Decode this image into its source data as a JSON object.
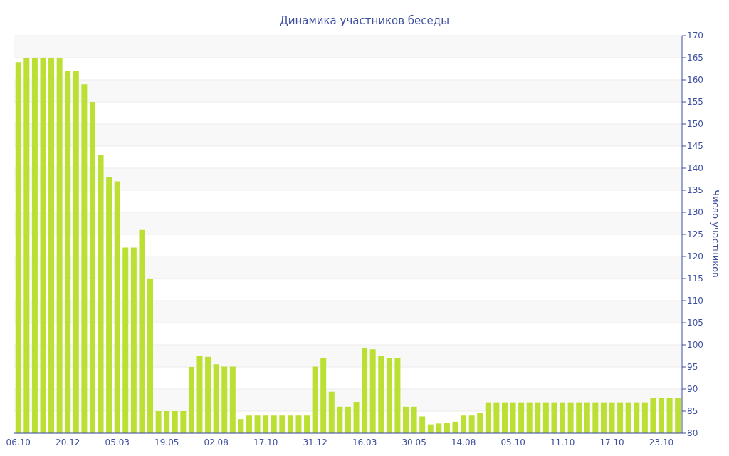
{
  "chart_data": {
    "type": "bar",
    "title": "Динамика участников беседы",
    "ylabel": "Число участников",
    "categories": [
      "06.10",
      null,
      null,
      null,
      null,
      null,
      "20.12",
      null,
      null,
      null,
      null,
      null,
      "05.03",
      null,
      null,
      null,
      null,
      null,
      "19.05",
      null,
      null,
      null,
      null,
      null,
      "02.08",
      null,
      null,
      null,
      null,
      null,
      "17.10",
      null,
      null,
      null,
      null,
      null,
      "31.12",
      null,
      null,
      null,
      null,
      null,
      "16.03",
      null,
      null,
      null,
      null,
      null,
      "30.05",
      null,
      null,
      null,
      null,
      null,
      "14.08",
      null,
      null,
      null,
      null,
      null,
      "05.10",
      null,
      null,
      null,
      null,
      null,
      "11.10",
      null,
      null,
      null,
      null,
      null,
      "17.10",
      null,
      null,
      null,
      null,
      null,
      "23.10",
      null,
      null
    ],
    "values": [
      164,
      165,
      165,
      165,
      165,
      165,
      162,
      162,
      159,
      155,
      143,
      138,
      137,
      122,
      122,
      126,
      115,
      85,
      85,
      85,
      85,
      95,
      97.5,
      97.3,
      95.6,
      95.1,
      95.1,
      83.2,
      84,
      84,
      84,
      84,
      84,
      84,
      84,
      84,
      95.1,
      97,
      89.4,
      86,
      86,
      87.1,
      99.2,
      99,
      97.4,
      97,
      97,
      86,
      86,
      83.8,
      82,
      82.2,
      82.4,
      82.6,
      84,
      84,
      84.6,
      87,
      87,
      87,
      87,
      87,
      87,
      87,
      87,
      87,
      87,
      87,
      87,
      87,
      87,
      87,
      87,
      87,
      87,
      87,
      87,
      88,
      88,
      88,
      88
    ],
    "color": "#bbe033",
    "ylim": [
      80,
      170
    ],
    "yticks": [
      80,
      85,
      90,
      95,
      100,
      105,
      110,
      115,
      120,
      125,
      130,
      135,
      140,
      145,
      150,
      155,
      160,
      165,
      170
    ],
    "grid": "y"
  }
}
